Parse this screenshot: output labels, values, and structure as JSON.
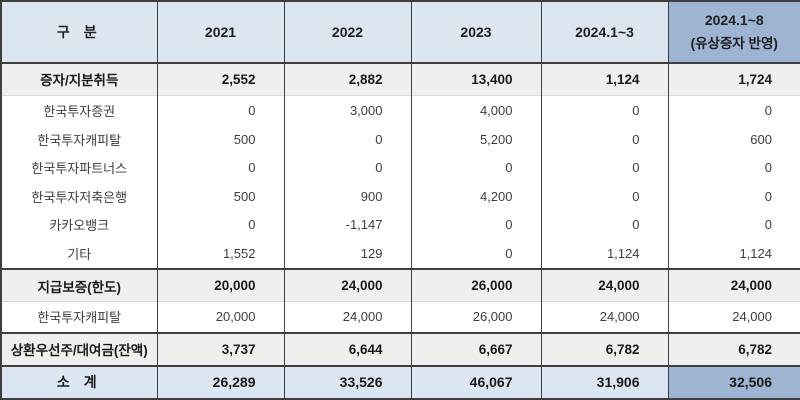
{
  "table": {
    "header": {
      "category": "구 분",
      "years": [
        "2021",
        "2022",
        "2023",
        "2024.1~3"
      ],
      "last_col": {
        "line1": "2024.1~8",
        "line2": "(유상증자 반영)"
      }
    },
    "rows": [
      {
        "label": "증자/지분취득",
        "type": "section",
        "values": [
          "2,552",
          "2,882",
          "13,400",
          "1,124",
          "1,724"
        ]
      },
      {
        "label": "한국투자증권",
        "type": "sub",
        "values": [
          "0",
          "3,000",
          "4,000",
          "0",
          "0"
        ]
      },
      {
        "label": "한국투자캐피탈",
        "type": "sub",
        "values": [
          "500",
          "0",
          "5,200",
          "0",
          "600"
        ]
      },
      {
        "label": "한국투자파트너스",
        "type": "sub",
        "values": [
          "0",
          "0",
          "0",
          "0",
          "0"
        ]
      },
      {
        "label": "한국투자저축은행",
        "type": "sub",
        "values": [
          "500",
          "900",
          "4,200",
          "0",
          "0"
        ]
      },
      {
        "label": "카카오뱅크",
        "type": "sub",
        "values": [
          "0",
          "-1,147",
          "0",
          "0",
          "0"
        ]
      },
      {
        "label": "기타",
        "type": "sub",
        "values": [
          "1,552",
          "129",
          "0",
          "1,124",
          "1,124"
        ]
      },
      {
        "label": "지급보증(한도)",
        "type": "section",
        "values": [
          "20,000",
          "24,000",
          "26,000",
          "24,000",
          "24,000"
        ]
      },
      {
        "label": "한국투자캐피탈",
        "type": "sub",
        "values": [
          "20,000",
          "24,000",
          "26,000",
          "24,000",
          "24,000"
        ]
      },
      {
        "label": "상환우선주/대여금(잔액)",
        "type": "section",
        "values": [
          "3,737",
          "6,644",
          "6,667",
          "6,782",
          "6,782"
        ]
      },
      {
        "label": "소 계",
        "type": "total",
        "values": [
          "26,289",
          "33,526",
          "46,067",
          "31,906",
          "32,506"
        ]
      }
    ],
    "colors": {
      "header_bg": "#dce6f1",
      "header_highlight_bg": "#9fb3d2",
      "section_bg": "#efefef",
      "total_bg": "#dce6f2",
      "total_highlight_bg": "#9fb3d2",
      "border_dark": "#3f3f3f"
    }
  }
}
